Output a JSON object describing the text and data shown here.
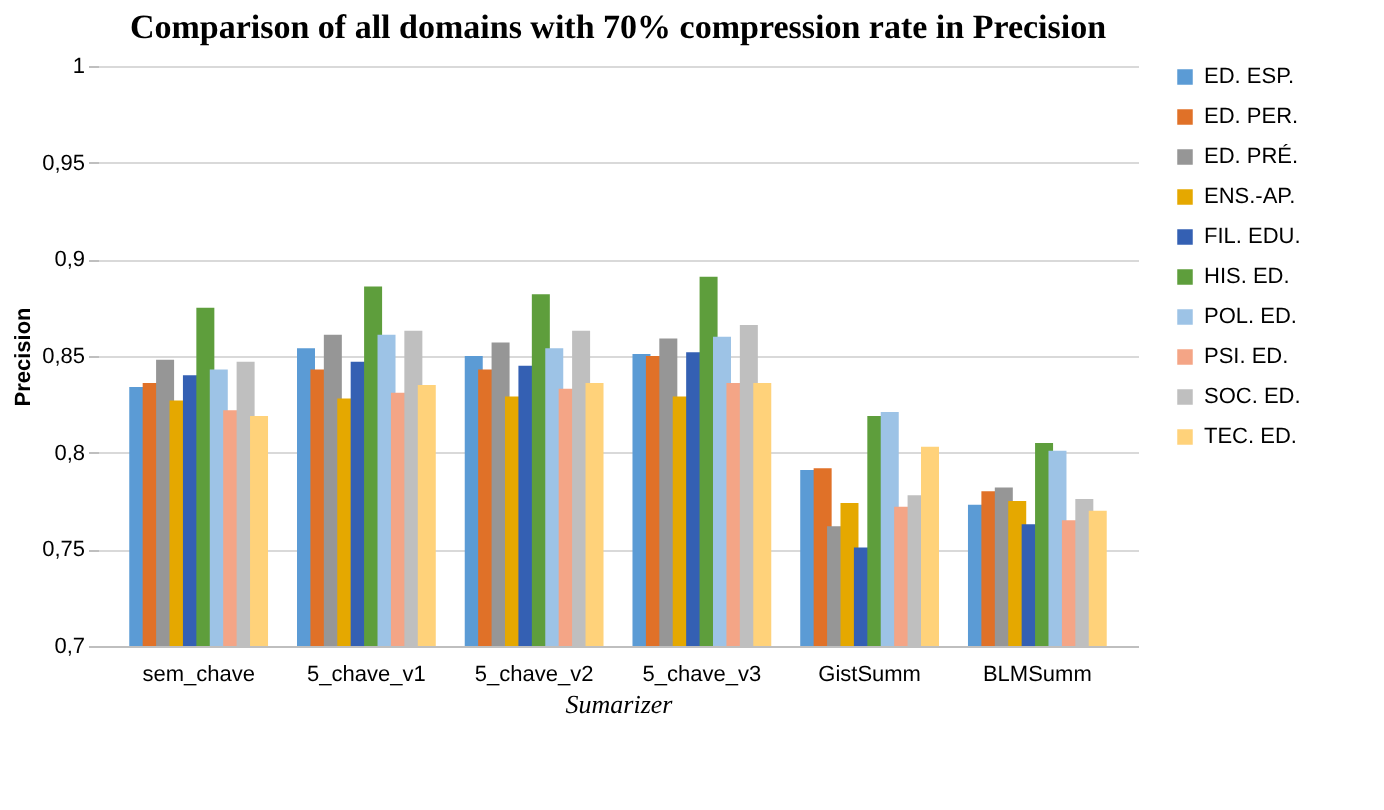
{
  "chart_data": {
    "type": "bar",
    "title": "Comparison of all domains with 70% compression rate in Precision",
    "xlabel": "Sumarizer",
    "ylabel": "Precision",
    "categories": [
      "sem_chave",
      "5_chave_v1",
      "5_chave_v2",
      "5_chave_v3",
      "GistSumm",
      "BLMSumm"
    ],
    "series": [
      {
        "name": "ED. ESP.",
        "color": "#5b9bd5",
        "values": [
          0.834,
          0.854,
          0.85,
          0.851,
          0.791,
          0.773
        ]
      },
      {
        "name": "ED. PER.",
        "color": "#e07128",
        "values": [
          0.836,
          0.843,
          0.843,
          0.85,
          0.792,
          0.78
        ]
      },
      {
        "name": "ED. PRÉ.",
        "color": "#969696",
        "values": [
          0.848,
          0.861,
          0.857,
          0.859,
          0.762,
          0.782
        ]
      },
      {
        "name": "ENS.-AP.",
        "color": "#e5a800",
        "values": [
          0.827,
          0.828,
          0.829,
          0.829,
          0.774,
          0.775
        ]
      },
      {
        "name": "FIL. EDU.",
        "color": "#3460b3",
        "values": [
          0.84,
          0.847,
          0.845,
          0.852,
          0.751,
          0.763
        ]
      },
      {
        "name": "HIS. ED.",
        "color": "#5e9e3c",
        "values": [
          0.875,
          0.886,
          0.882,
          0.891,
          0.819,
          0.805
        ]
      },
      {
        "name": "POL. ED.",
        "color": "#9dc3e6",
        "values": [
          0.843,
          0.861,
          0.854,
          0.86,
          0.821,
          0.801
        ]
      },
      {
        "name": "PSI. ED.",
        "color": "#f4a586",
        "values": [
          0.822,
          0.831,
          0.833,
          0.836,
          0.772,
          0.765
        ]
      },
      {
        "name": "SOC. ED.",
        "color": "#bfbfbf",
        "values": [
          0.847,
          0.863,
          0.863,
          0.866,
          0.778,
          0.776
        ]
      },
      {
        "name": "TEC. ED.",
        "color": "#ffd27a",
        "values": [
          0.819,
          0.835,
          0.836,
          0.836,
          0.803,
          0.77
        ]
      }
    ],
    "ylim": [
      0.7,
      1
    ],
    "yticks": [
      {
        "value": 0.7,
        "label": "0,7"
      },
      {
        "value": 0.75,
        "label": "0,75"
      },
      {
        "value": 0.8,
        "label": "0,8"
      },
      {
        "value": 0.85,
        "label": "0,85"
      },
      {
        "value": 0.9,
        "label": "0,9"
      },
      {
        "value": 0.95,
        "label": "0,95"
      },
      {
        "value": 1,
        "label": "1"
      }
    ],
    "grid": "y",
    "legend": "right"
  }
}
